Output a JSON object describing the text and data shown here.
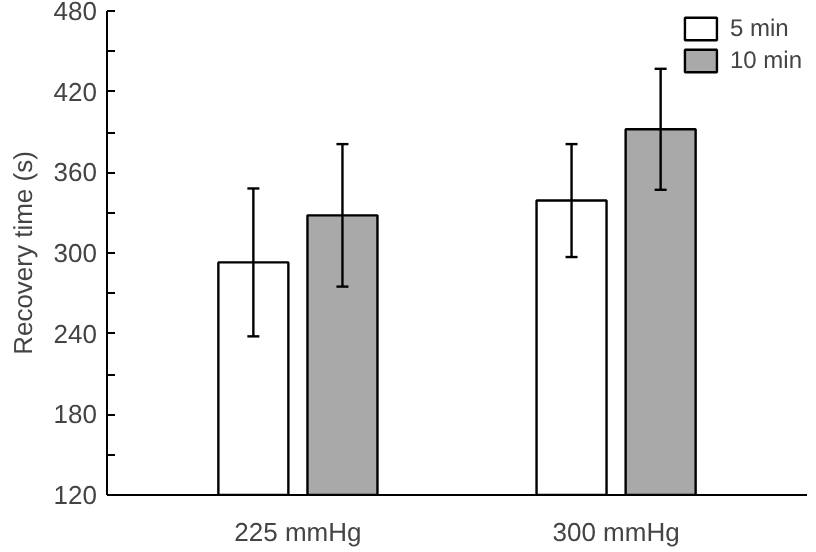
{
  "chart_data": {
    "type": "bar",
    "ylabel": "Recovery time (s)",
    "categories": [
      "225 mmHg",
      "300 mmHg"
    ],
    "series": [
      {
        "name": "5 min",
        "color": "#ffffff",
        "values": [
          293,
          339
        ],
        "errors": [
          55,
          42
        ]
      },
      {
        "name": "10 min",
        "color": "#a9a9a9",
        "values": [
          328,
          392
        ],
        "errors": [
          53,
          45
        ]
      }
    ],
    "ylim": [
      120,
      480
    ],
    "yticks": [
      120,
      {
        "value": 150,
        "label": null
      },
      180,
      {
        "value": 210,
        "label": null
      },
      240,
      {
        "value": 270,
        "label": null
      },
      300,
      {
        "value": 330,
        "label": null
      },
      360,
      {
        "value": 390,
        "label": null
      },
      420,
      {
        "value": 450,
        "label": null
      },
      480
    ],
    "grid": false,
    "legend": "top right"
  }
}
